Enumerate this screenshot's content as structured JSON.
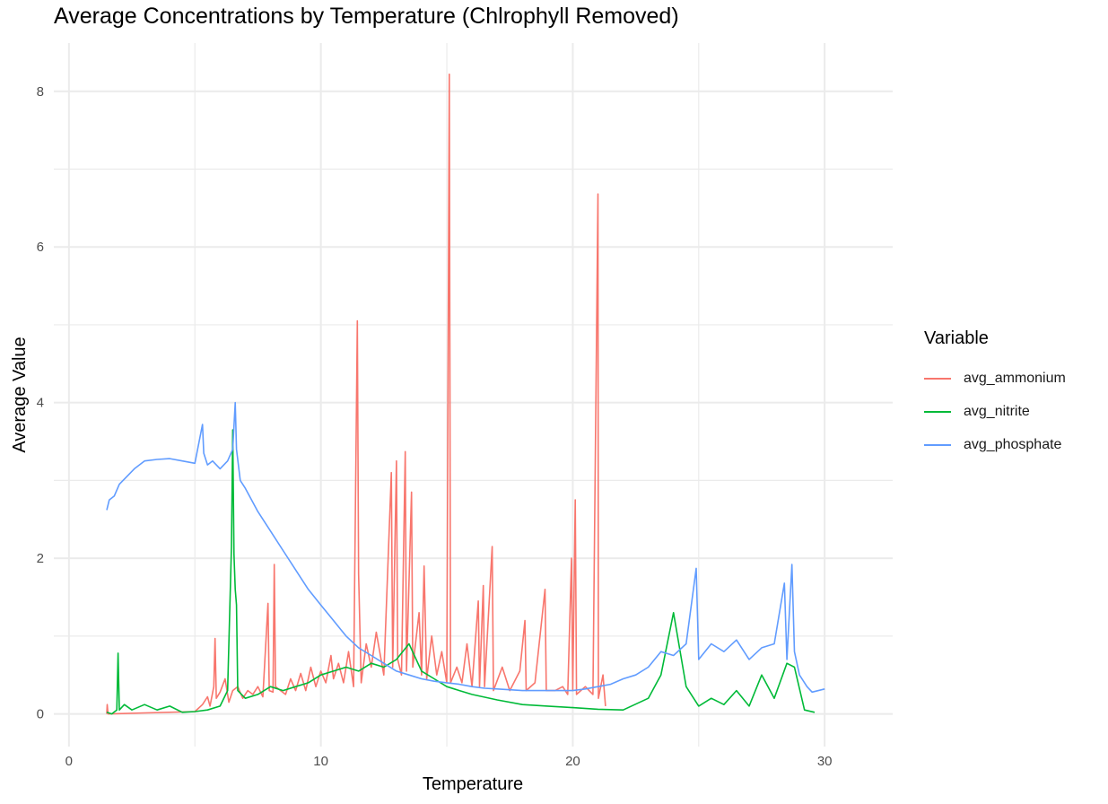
{
  "chart_data": {
    "type": "line",
    "title": "Average Concentrations by Temperature (Chlrophyll Removed)",
    "xlabel": "Temperature",
    "ylabel": "Average Value",
    "xlim": [
      -0.6,
      32.7
    ],
    "ylim": [
      -0.42,
      8.62
    ],
    "x_ticks": [
      "0",
      "10",
      "20",
      "30"
    ],
    "y_ticks": [
      "0",
      "2",
      "4",
      "6",
      "8"
    ],
    "grid": true,
    "legend_title": "Variable",
    "legend_position": "right",
    "series": [
      {
        "name": "avg_ammonium",
        "color": "#F8766D",
        "points": [
          [
            1.5,
            0.0
          ],
          [
            1.52,
            0.12
          ],
          [
            1.55,
            0.0
          ],
          [
            5.0,
            0.03
          ],
          [
            5.3,
            0.12
          ],
          [
            5.5,
            0.22
          ],
          [
            5.6,
            0.1
          ],
          [
            5.75,
            0.35
          ],
          [
            5.8,
            0.97
          ],
          [
            5.85,
            0.2
          ],
          [
            6.0,
            0.28
          ],
          [
            6.2,
            0.45
          ],
          [
            6.35,
            0.15
          ],
          [
            6.5,
            0.3
          ],
          [
            6.7,
            0.35
          ],
          [
            6.9,
            0.2
          ],
          [
            7.1,
            0.3
          ],
          [
            7.3,
            0.25
          ],
          [
            7.5,
            0.35
          ],
          [
            7.7,
            0.22
          ],
          [
            7.9,
            1.42
          ],
          [
            7.95,
            0.3
          ],
          [
            8.1,
            0.28
          ],
          [
            8.15,
            1.92
          ],
          [
            8.2,
            0.35
          ],
          [
            8.4,
            0.3
          ],
          [
            8.6,
            0.25
          ],
          [
            8.8,
            0.45
          ],
          [
            9.0,
            0.3
          ],
          [
            9.2,
            0.52
          ],
          [
            9.4,
            0.3
          ],
          [
            9.6,
            0.6
          ],
          [
            9.8,
            0.35
          ],
          [
            10.0,
            0.55
          ],
          [
            10.2,
            0.4
          ],
          [
            10.4,
            0.75
          ],
          [
            10.5,
            0.45
          ],
          [
            10.7,
            0.65
          ],
          [
            10.9,
            0.4
          ],
          [
            11.1,
            0.8
          ],
          [
            11.3,
            0.35
          ],
          [
            11.45,
            5.05
          ],
          [
            11.5,
            1.8
          ],
          [
            11.6,
            0.4
          ],
          [
            11.8,
            0.9
          ],
          [
            12.0,
            0.6
          ],
          [
            12.2,
            1.05
          ],
          [
            12.5,
            0.5
          ],
          [
            12.8,
            3.1
          ],
          [
            12.85,
            0.6
          ],
          [
            13.0,
            3.25
          ],
          [
            13.05,
            0.7
          ],
          [
            13.2,
            0.5
          ],
          [
            13.35,
            3.37
          ],
          [
            13.4,
            0.55
          ],
          [
            13.6,
            2.85
          ],
          [
            13.65,
            0.6
          ],
          [
            13.9,
            1.3
          ],
          [
            14.0,
            0.5
          ],
          [
            14.1,
            1.9
          ],
          [
            14.2,
            0.45
          ],
          [
            14.4,
            1.0
          ],
          [
            14.6,
            0.5
          ],
          [
            14.8,
            0.8
          ],
          [
            15.0,
            0.4
          ],
          [
            15.1,
            8.22
          ],
          [
            15.15,
            0.4
          ],
          [
            15.4,
            0.6
          ],
          [
            15.6,
            0.4
          ],
          [
            15.8,
            0.9
          ],
          [
            16.0,
            0.35
          ],
          [
            16.25,
            1.45
          ],
          [
            16.3,
            0.35
          ],
          [
            16.45,
            1.65
          ],
          [
            16.5,
            0.35
          ],
          [
            16.8,
            2.15
          ],
          [
            16.85,
            0.3
          ],
          [
            17.2,
            0.6
          ],
          [
            17.5,
            0.3
          ],
          [
            17.9,
            0.55
          ],
          [
            18.1,
            1.2
          ],
          [
            18.15,
            0.3
          ],
          [
            18.5,
            0.4
          ],
          [
            18.9,
            1.6
          ],
          [
            18.95,
            0.3
          ],
          [
            19.3,
            0.3
          ],
          [
            19.6,
            0.35
          ],
          [
            19.8,
            0.25
          ],
          [
            19.95,
            2.0
          ],
          [
            20.0,
            0.3
          ],
          [
            20.1,
            2.75
          ],
          [
            20.15,
            0.25
          ],
          [
            20.5,
            0.35
          ],
          [
            20.8,
            0.25
          ],
          [
            21.0,
            6.68
          ],
          [
            21.02,
            0.2
          ],
          [
            21.2,
            0.5
          ],
          [
            21.3,
            0.1
          ]
        ]
      },
      {
        "name": "avg_nitrite",
        "color": "#00BA38",
        "points": [
          [
            1.5,
            0.02
          ],
          [
            1.7,
            0.0
          ],
          [
            1.9,
            0.05
          ],
          [
            1.95,
            0.78
          ],
          [
            2.0,
            0.05
          ],
          [
            2.2,
            0.12
          ],
          [
            2.5,
            0.05
          ],
          [
            3.0,
            0.12
          ],
          [
            3.5,
            0.05
          ],
          [
            4.0,
            0.1
          ],
          [
            4.5,
            0.02
          ],
          [
            5.0,
            0.03
          ],
          [
            5.5,
            0.05
          ],
          [
            6.0,
            0.1
          ],
          [
            6.3,
            0.3
          ],
          [
            6.45,
            2.15
          ],
          [
            6.5,
            3.65
          ],
          [
            6.55,
            2.05
          ],
          [
            6.6,
            1.6
          ],
          [
            6.65,
            1.4
          ],
          [
            6.7,
            0.3
          ],
          [
            7.0,
            0.2
          ],
          [
            7.5,
            0.25
          ],
          [
            8.0,
            0.35
          ],
          [
            8.5,
            0.3
          ],
          [
            9.0,
            0.35
          ],
          [
            9.5,
            0.4
          ],
          [
            10.0,
            0.5
          ],
          [
            10.5,
            0.55
          ],
          [
            11.0,
            0.6
          ],
          [
            11.5,
            0.55
          ],
          [
            12.0,
            0.65
          ],
          [
            12.5,
            0.6
          ],
          [
            13.0,
            0.7
          ],
          [
            13.5,
            0.9
          ],
          [
            14.0,
            0.55
          ],
          [
            14.5,
            0.45
          ],
          [
            15.0,
            0.35
          ],
          [
            15.5,
            0.3
          ],
          [
            16.0,
            0.25
          ],
          [
            17.0,
            0.18
          ],
          [
            18.0,
            0.12
          ],
          [
            19.0,
            0.1
          ],
          [
            20.0,
            0.08
          ],
          [
            21.0,
            0.06
          ],
          [
            22.0,
            0.05
          ],
          [
            23.0,
            0.2
          ],
          [
            23.5,
            0.5
          ],
          [
            24.0,
            1.3
          ],
          [
            24.5,
            0.35
          ],
          [
            25.0,
            0.1
          ],
          [
            25.5,
            0.2
          ],
          [
            26.0,
            0.12
          ],
          [
            26.5,
            0.3
          ],
          [
            27.0,
            0.1
          ],
          [
            27.5,
            0.5
          ],
          [
            28.0,
            0.2
          ],
          [
            28.5,
            0.65
          ],
          [
            28.8,
            0.6
          ],
          [
            29.2,
            0.05
          ],
          [
            29.6,
            0.02
          ]
        ]
      },
      {
        "name": "avg_phosphate",
        "color": "#619CFF",
        "points": [
          [
            1.5,
            2.62
          ],
          [
            1.6,
            2.75
          ],
          [
            1.8,
            2.8
          ],
          [
            2.0,
            2.95
          ],
          [
            2.3,
            3.05
          ],
          [
            2.6,
            3.15
          ],
          [
            3.0,
            3.25
          ],
          [
            3.5,
            3.27
          ],
          [
            4.0,
            3.28
          ],
          [
            4.5,
            3.25
          ],
          [
            5.0,
            3.22
          ],
          [
            5.3,
            3.72
          ],
          [
            5.35,
            3.35
          ],
          [
            5.5,
            3.2
          ],
          [
            5.7,
            3.25
          ],
          [
            6.0,
            3.15
          ],
          [
            6.3,
            3.25
          ],
          [
            6.5,
            3.4
          ],
          [
            6.6,
            4.0
          ],
          [
            6.65,
            3.4
          ],
          [
            6.8,
            3.0
          ],
          [
            7.0,
            2.9
          ],
          [
            7.5,
            2.6
          ],
          [
            8.0,
            2.35
          ],
          [
            8.5,
            2.1
          ],
          [
            9.0,
            1.85
          ],
          [
            9.5,
            1.6
          ],
          [
            10.0,
            1.4
          ],
          [
            10.5,
            1.2
          ],
          [
            11.0,
            1.0
          ],
          [
            11.5,
            0.85
          ],
          [
            12.0,
            0.75
          ],
          [
            12.5,
            0.65
          ],
          [
            13.0,
            0.55
          ],
          [
            13.5,
            0.5
          ],
          [
            14.0,
            0.45
          ],
          [
            14.5,
            0.42
          ],
          [
            15.0,
            0.4
          ],
          [
            15.5,
            0.38
          ],
          [
            16.0,
            0.35
          ],
          [
            16.5,
            0.33
          ],
          [
            17.0,
            0.32
          ],
          [
            18.0,
            0.3
          ],
          [
            19.0,
            0.3
          ],
          [
            20.0,
            0.3
          ],
          [
            20.5,
            0.32
          ],
          [
            21.0,
            0.35
          ],
          [
            21.5,
            0.38
          ],
          [
            22.0,
            0.45
          ],
          [
            22.5,
            0.5
          ],
          [
            23.0,
            0.6
          ],
          [
            23.5,
            0.8
          ],
          [
            24.0,
            0.75
          ],
          [
            24.5,
            0.9
          ],
          [
            24.9,
            1.87
          ],
          [
            25.0,
            0.7
          ],
          [
            25.5,
            0.9
          ],
          [
            26.0,
            0.8
          ],
          [
            26.5,
            0.95
          ],
          [
            27.0,
            0.7
          ],
          [
            27.5,
            0.85
          ],
          [
            28.0,
            0.9
          ],
          [
            28.4,
            1.68
          ],
          [
            28.5,
            0.7
          ],
          [
            28.7,
            1.92
          ],
          [
            28.8,
            0.8
          ],
          [
            29.0,
            0.5
          ],
          [
            29.3,
            0.35
          ],
          [
            29.5,
            0.28
          ],
          [
            30.0,
            0.32
          ]
        ]
      }
    ]
  }
}
